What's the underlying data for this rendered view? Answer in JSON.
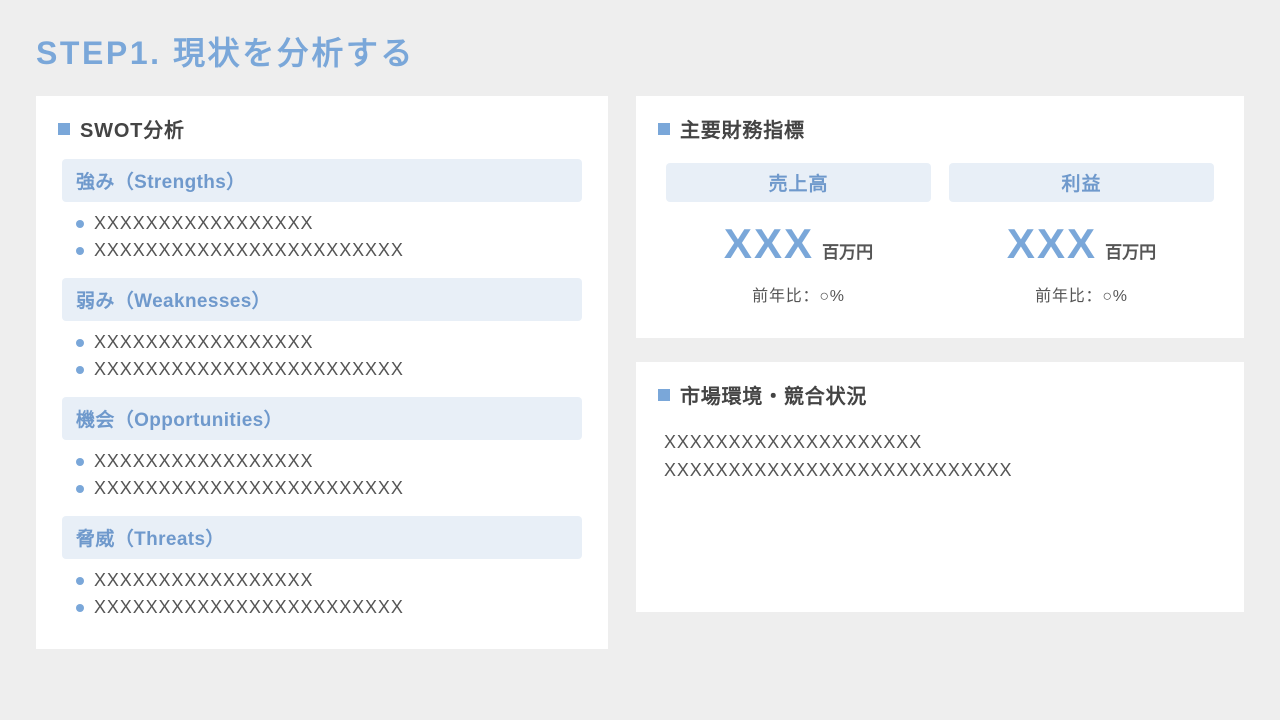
{
  "colors": {
    "page_bg": "#eeeeee",
    "card_bg": "#ffffff",
    "accent": "#7aa7d9",
    "accent_light_bg": "#e8eff7",
    "heading_text": "#6f99cc",
    "body_text": "#555555",
    "title_text": "#444444"
  },
  "title": "STEP1. 現状を分析する",
  "swot": {
    "card_title": "SWOT分析",
    "sections": [
      {
        "heading": "強み（Strengths）",
        "items": [
          "XXXXXXXXXXXXXXXXX",
          "XXXXXXXXXXXXXXXXXXXXXXXX"
        ]
      },
      {
        "heading": "弱み（Weaknesses）",
        "items": [
          "XXXXXXXXXXXXXXXXX",
          "XXXXXXXXXXXXXXXXXXXXXXXX"
        ]
      },
      {
        "heading": "機会（Opportunities）",
        "items": [
          "XXXXXXXXXXXXXXXXX",
          "XXXXXXXXXXXXXXXXXXXXXXXX"
        ]
      },
      {
        "heading": "脅威（Threats）",
        "items": [
          "XXXXXXXXXXXXXXXXX",
          "XXXXXXXXXXXXXXXXXXXXXXXX"
        ]
      }
    ]
  },
  "financials": {
    "card_title": "主要財務指標",
    "metrics": [
      {
        "label": "売上高",
        "value": "XXX",
        "unit": "百万円",
        "yoy": "前年比：○%"
      },
      {
        "label": "利益",
        "value": "XXX",
        "unit": "百万円",
        "yoy": "前年比：○%"
      }
    ]
  },
  "market": {
    "card_title": "市場環境・競合状況",
    "body_lines": [
      "XXXXXXXXXXXXXXXXXXXX",
      "XXXXXXXXXXXXXXXXXXXXXXXXXXX"
    ]
  }
}
